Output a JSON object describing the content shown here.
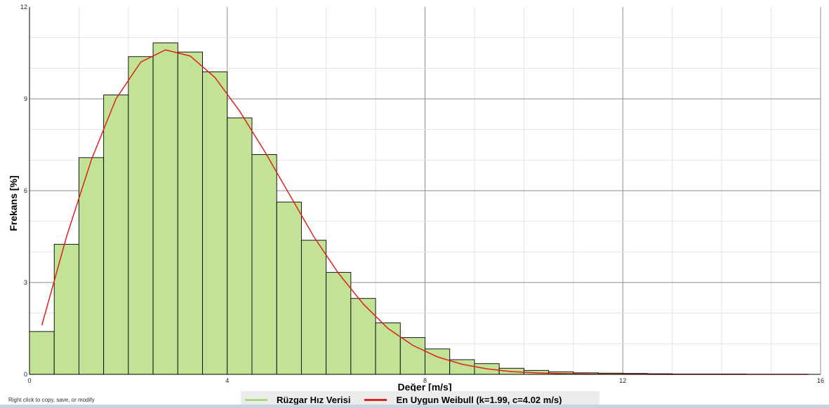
{
  "chart_data": {
    "type": "bar",
    "xlabel": "Değer [m/s]",
    "ylabel": "Frekans [%]",
    "xlim": [
      0,
      16
    ],
    "ylim": [
      0,
      12
    ],
    "x_ticks": [
      "0",
      "4",
      "8",
      "12",
      "16"
    ],
    "y_ticks": [
      "0",
      "3",
      "6",
      "9",
      "12"
    ],
    "grid": true,
    "legend_position": "bottom-center",
    "series": [
      {
        "name": "Rüzgar Hız Verisi",
        "kind": "histogram",
        "color": "#c2e396",
        "bin_width": 0.5,
        "bin_starts": [
          0,
          0.5,
          1,
          1.5,
          2,
          2.5,
          3,
          3.5,
          4,
          4.5,
          5,
          5.5,
          6,
          6.5,
          7,
          7.5,
          8,
          8.5,
          9,
          9.5,
          10,
          10.5,
          11,
          11.5,
          12,
          12.5,
          13,
          13.5,
          14,
          14.5,
          15,
          15.5
        ],
        "values": [
          1.4,
          4.25,
          7.08,
          9.13,
          10.38,
          10.83,
          10.53,
          9.88,
          8.38,
          7.18,
          5.63,
          4.38,
          3.33,
          2.48,
          1.68,
          1.2,
          0.83,
          0.48,
          0.35,
          0.2,
          0.13,
          0.08,
          0.05,
          0.04,
          0.03,
          0.02,
          0.01,
          0.01,
          0.01,
          0,
          0,
          0
        ]
      },
      {
        "name": "En Uygun Weibull (k=1.99, c=4.02 m/s)",
        "kind": "line",
        "color": "#e0201a",
        "x": [
          0.25,
          0.75,
          1.25,
          1.75,
          2.25,
          2.75,
          3.25,
          3.75,
          4.25,
          4.75,
          5.25,
          5.75,
          6.25,
          6.75,
          7.25,
          7.75,
          8.25,
          8.75,
          9.25,
          9.75,
          10.25,
          10.75,
          11.25,
          11.75,
          12.25,
          12.75,
          13.25,
          13.75,
          14.25,
          14.75,
          15.25,
          15.75
        ],
        "values": [
          1.6,
          4.5,
          7.0,
          9.0,
          10.2,
          10.6,
          10.4,
          9.7,
          8.6,
          7.3,
          5.9,
          4.5,
          3.3,
          2.3,
          1.5,
          0.95,
          0.57,
          0.33,
          0.18,
          0.09,
          0.05,
          0.025,
          0.012,
          0.005,
          0.002,
          0.001,
          0,
          0,
          0,
          0,
          0,
          0
        ]
      }
    ]
  },
  "ui": {
    "hint": "Right click to copy, save, or modify",
    "legend": {
      "item1": "Rüzgar Hız Verisi",
      "item2": "En Uygun Weibull (k=1.99, c=4.02 m/s)"
    }
  }
}
